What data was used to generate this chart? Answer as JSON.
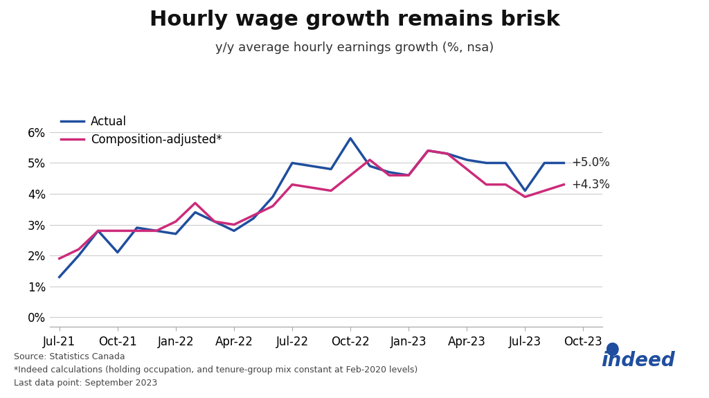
{
  "title": "Hourly wage growth remains brisk",
  "subtitle": "y/y average hourly earnings growth (%, nsa)",
  "actual_values": [
    1.3,
    2.0,
    2.8,
    2.1,
    2.9,
    2.8,
    2.7,
    3.4,
    3.1,
    2.8,
    3.2,
    3.9,
    5.0,
    4.9,
    4.8,
    5.8,
    4.9,
    4.7,
    4.6,
    5.4,
    5.3,
    5.1,
    5.0,
    5.0,
    4.1,
    5.0,
    5.0
  ],
  "adjusted_values": [
    1.9,
    2.2,
    2.8,
    2.8,
    2.8,
    2.8,
    3.1,
    3.7,
    3.1,
    3.0,
    3.3,
    3.6,
    4.3,
    4.2,
    4.1,
    4.6,
    5.1,
    4.6,
    4.6,
    5.4,
    5.3,
    4.8,
    4.3,
    4.3,
    3.9,
    4.1,
    4.3
  ],
  "actual_color": "#1f4e9e",
  "adjusted_color": "#cc2b7a",
  "actual_label": "Actual",
  "adjusted_label": "Composition-adjusted*",
  "actual_end_label": "+5.0%",
  "adjusted_end_label": "+4.3%",
  "ytick_labels": [
    "0%",
    "1%",
    "2%",
    "3%",
    "4%",
    "5%",
    "6%"
  ],
  "ytick_values": [
    0,
    1,
    2,
    3,
    4,
    5,
    6
  ],
  "ylim": [
    -0.3,
    6.8
  ],
  "xtick_labels": [
    "Jul-21",
    "Oct-21",
    "Jan-22",
    "Apr-22",
    "Jul-22",
    "Oct-22",
    "Jan-23",
    "Apr-23",
    "Jul-23",
    "Oct-23"
  ],
  "xtick_positions": [
    0,
    3,
    6,
    9,
    12,
    15,
    18,
    21,
    24,
    27
  ],
  "source_text": "Source: Statistics Canada",
  "footnote1": "*Indeed calculations (holding occupation, and tenure-group mix constant at Feb-2020 levels)",
  "footnote2": "Last data point: September 2023",
  "background_color": "#ffffff",
  "title_fontsize": 22,
  "subtitle_fontsize": 13,
  "legend_fontsize": 12,
  "annotation_fontsize": 12,
  "footnote_fontsize": 9,
  "tick_fontsize": 12,
  "grid_color": "#cccccc",
  "spine_color": "#aaaaaa",
  "text_color": "#222222",
  "footer_color": "#444444"
}
